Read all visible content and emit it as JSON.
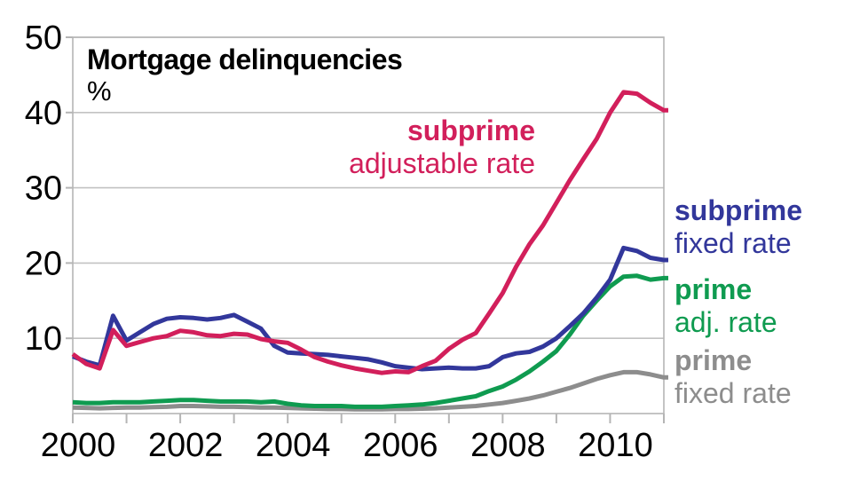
{
  "title": "Mortgage delinquencies",
  "unit_label": "%",
  "annotations": {
    "subprime_arm": {
      "line1": "subprime",
      "line2": "adjustable rate"
    },
    "subprime_fixed": {
      "line1": "subprime",
      "line2": "fixed rate"
    },
    "prime_arm": {
      "line1": "prime",
      "line2": "adj. rate"
    },
    "prime_fixed": {
      "line1": "prime",
      "line2": "fixed rate"
    }
  },
  "colors": {
    "subprime_arm": "#d21f5b",
    "subprime_fixed": "#32379b",
    "prime_arm": "#0f9b50",
    "prime_fixed": "#8d8d8d",
    "grid": "#c2c2c2",
    "axis": "#b5b5b5",
    "text": "#000000"
  },
  "chart_data": {
    "type": "line",
    "title": "Mortgage delinquencies",
    "ylabel": "%",
    "xlim": [
      2000,
      2011
    ],
    "ylim": [
      0,
      50
    ],
    "grid": "horizontal",
    "legend_position": "right-direct-labels",
    "x_start": 2000,
    "x_step": 0.25,
    "x_ticks": [
      2000,
      2001,
      2002,
      2003,
      2004,
      2005,
      2006,
      2007,
      2008,
      2009,
      2010,
      2011
    ],
    "x_tick_labels": [
      "2000",
      "",
      "2002",
      "",
      "2004",
      "",
      "2006",
      "",
      "2008",
      "",
      "2010",
      ""
    ],
    "y_ticks": [
      10,
      20,
      30,
      40,
      50
    ],
    "series": [
      {
        "name": "prime fixed rate",
        "color_key": "prime_fixed",
        "values": [
          0.8,
          0.75,
          0.7,
          0.75,
          0.8,
          0.8,
          0.85,
          0.9,
          1.0,
          1.0,
          0.95,
          0.9,
          0.9,
          0.85,
          0.8,
          0.8,
          0.75,
          0.7,
          0.65,
          0.6,
          0.6,
          0.55,
          0.55,
          0.55,
          0.6,
          0.6,
          0.65,
          0.7,
          0.8,
          0.9,
          1.0,
          1.2,
          1.4,
          1.7,
          2.0,
          2.4,
          2.9,
          3.4,
          4.0,
          4.6,
          5.1,
          5.5,
          5.5,
          5.2,
          4.8
        ]
      },
      {
        "name": "prime adjustable rate",
        "color_key": "prime_arm",
        "values": [
          1.5,
          1.4,
          1.4,
          1.5,
          1.5,
          1.5,
          1.6,
          1.7,
          1.8,
          1.8,
          1.7,
          1.6,
          1.6,
          1.6,
          1.5,
          1.6,
          1.3,
          1.1,
          1.0,
          1.0,
          1.0,
          0.9,
          0.9,
          0.9,
          1.0,
          1.1,
          1.2,
          1.4,
          1.7,
          2.0,
          2.3,
          3.0,
          3.6,
          4.5,
          5.6,
          6.9,
          8.3,
          10.5,
          13.0,
          15.0,
          16.9,
          18.2,
          18.3,
          17.8,
          18.0
        ]
      },
      {
        "name": "subprime fixed rate",
        "color_key": "subprime_fixed",
        "values": [
          7.6,
          6.9,
          6.4,
          13.0,
          9.7,
          10.8,
          11.9,
          12.6,
          12.8,
          12.7,
          12.5,
          12.7,
          13.1,
          12.2,
          11.3,
          9.0,
          8.1,
          8.0,
          7.9,
          7.8,
          7.6,
          7.4,
          7.2,
          6.8,
          6.3,
          6.1,
          5.9,
          6.0,
          6.1,
          6.0,
          6.0,
          6.3,
          7.5,
          8.0,
          8.2,
          8.9,
          10.0,
          11.6,
          13.3,
          15.4,
          17.8,
          22.0,
          21.6,
          20.7,
          20.4
        ]
      },
      {
        "name": "subprime adjustable rate",
        "color_key": "subprime_arm",
        "values": [
          7.9,
          6.6,
          6.0,
          11.1,
          9.0,
          9.5,
          10.0,
          10.3,
          11.0,
          10.8,
          10.4,
          10.3,
          10.6,
          10.5,
          9.9,
          9.6,
          9.4,
          8.5,
          7.5,
          6.9,
          6.4,
          6.0,
          5.7,
          5.4,
          5.6,
          5.5,
          6.3,
          7.0,
          8.6,
          9.8,
          10.7,
          13.3,
          16.0,
          19.5,
          22.5,
          25.0,
          28.0,
          31.0,
          33.8,
          36.5,
          40.0,
          42.7,
          42.5,
          41.3,
          40.3
        ]
      }
    ]
  }
}
